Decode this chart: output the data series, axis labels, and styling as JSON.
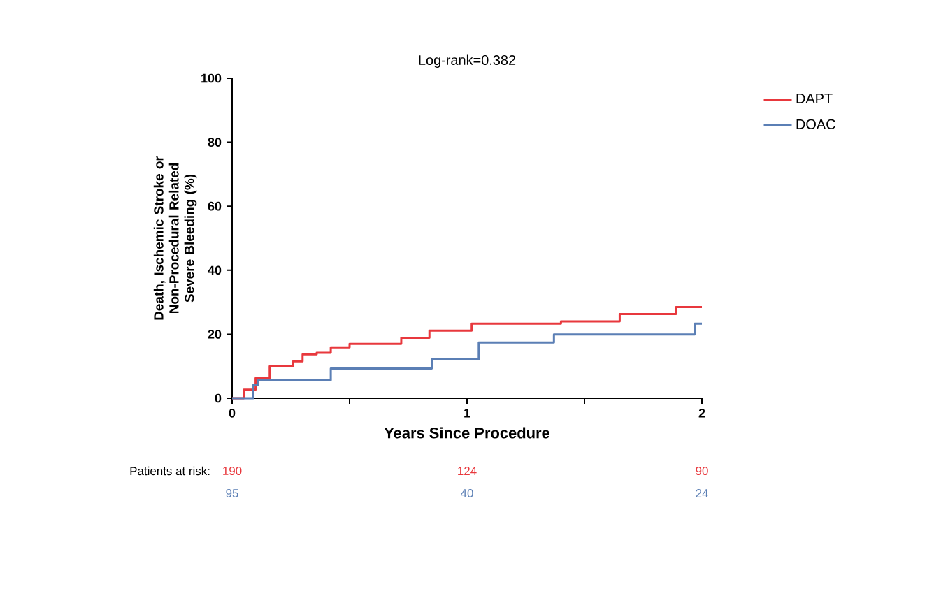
{
  "chart_data": {
    "type": "step",
    "title": "Log-rank=0.382",
    "xlabel": "Years Since Procedure",
    "ylabel": "Death, Ischemic Stroke or Non-Procedural Related Severe Bleeding (%)",
    "xlim": [
      0,
      2
    ],
    "ylim": [
      0,
      100
    ],
    "xticks": [
      0,
      {
        "value": 0.5,
        "label": null
      },
      1,
      {
        "value": 1.5,
        "label": null
      },
      2
    ],
    "yticks": [
      0,
      20,
      40,
      60,
      80,
      100
    ],
    "legend": "top right",
    "grid": false,
    "annotations": [
      "Patients at risk:",
      "190",
      "124",
      "90",
      "95",
      "40",
      "24"
    ],
    "series": [
      {
        "name": "DAPT",
        "color": "#e8383d",
        "x": [
          0,
          0.05,
          0.1,
          0.16,
          0.26,
          0.3,
          0.36,
          0.42,
          0.5,
          0.72,
          0.84,
          1.02,
          1.4,
          1.65,
          1.89,
          2.0
        ],
        "values": [
          0,
          2.7,
          6.3,
          10,
          11.5,
          13.7,
          14.2,
          15.9,
          17,
          18.9,
          21.1,
          23.3,
          24,
          26.3,
          28.5,
          28.5
        ]
      },
      {
        "name": "DOAC",
        "color": "#5b7fb5",
        "x": [
          0,
          0.09,
          0.11,
          0.42,
          0.85,
          1.05,
          1.37,
          1.97,
          2.0
        ],
        "values": [
          0,
          4.1,
          5.6,
          9.3,
          12.2,
          17.4,
          19.9,
          23.3,
          23.3
        ]
      }
    ]
  }
}
